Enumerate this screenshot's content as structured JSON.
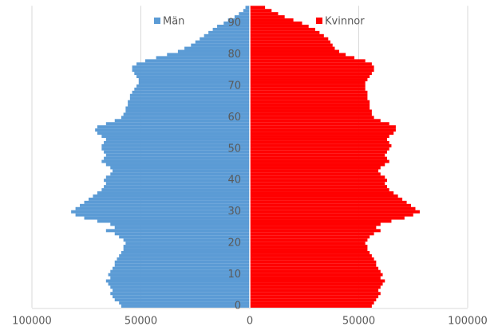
{
  "chart_data": {
    "type": "pyramid",
    "y": [
      0,
      1,
      2,
      3,
      4,
      5,
      6,
      7,
      8,
      9,
      10,
      11,
      12,
      13,
      14,
      15,
      16,
      17,
      18,
      19,
      20,
      21,
      22,
      23,
      24,
      25,
      26,
      27,
      28,
      29,
      30,
      31,
      32,
      33,
      34,
      35,
      36,
      37,
      38,
      39,
      40,
      41,
      42,
      43,
      44,
      45,
      46,
      47,
      48,
      49,
      50,
      51,
      52,
      53,
      54,
      55,
      56,
      57,
      58,
      59,
      60,
      61,
      62,
      63,
      64,
      65,
      66,
      67,
      68,
      69,
      70,
      71,
      72,
      73,
      74,
      75,
      76,
      77,
      78,
      79,
      80,
      81,
      82,
      83,
      84,
      85,
      86,
      87,
      88,
      89,
      90,
      91,
      92,
      93,
      94,
      95
    ],
    "series": [
      {
        "name": "Män",
        "color": "#5b9bd5",
        "values": [
          -59000,
          -60000,
          -62000,
          -63000,
          -64000,
          -63000,
          -64000,
          -65000,
          -66000,
          -64000,
          -65000,
          -64000,
          -63000,
          -62000,
          -62000,
          -61000,
          -60000,
          -59000,
          -58000,
          -58000,
          -57000,
          -58000,
          -60000,
          -62000,
          -66000,
          -62000,
          -64000,
          -70000,
          -76000,
          -80000,
          -82000,
          -80000,
          -78000,
          -76000,
          -74000,
          -72000,
          -70000,
          -68000,
          -67000,
          -66000,
          -67000,
          -66000,
          -64000,
          -63000,
          -64000,
          -66000,
          -68000,
          -67000,
          -66000,
          -67000,
          -68000,
          -68000,
          -67000,
          -66000,
          -68000,
          -70000,
          -71000,
          -70000,
          -66000,
          -62000,
          -59000,
          -58000,
          -57000,
          -57000,
          -56000,
          -56000,
          -55000,
          -55000,
          -54000,
          -53000,
          -52000,
          -51000,
          -51000,
          -52000,
          -53000,
          -54000,
          -54000,
          -52000,
          -48000,
          -43000,
          -38000,
          -33000,
          -30000,
          -27000,
          -25000,
          -23000,
          -21000,
          -19000,
          -17000,
          -15000,
          -12000,
          -10000,
          -7000,
          -5000,
          -3000,
          -2000
        ]
      },
      {
        "name": "Kvinnor",
        "color": "#ff0000",
        "values": [
          56000,
          57000,
          58000,
          59000,
          60000,
          59000,
          60000,
          61000,
          62000,
          60000,
          61000,
          60000,
          59000,
          58000,
          58000,
          57000,
          56000,
          55000,
          54000,
          54000,
          53000,
          54000,
          55000,
          57000,
          60000,
          58000,
          60000,
          65000,
          71000,
          75000,
          78000,
          76000,
          74000,
          72000,
          70000,
          68000,
          66000,
          64000,
          63000,
          62000,
          63000,
          62000,
          60000,
          59000,
          60000,
          62000,
          64000,
          63000,
          62000,
          63000,
          64000,
          65000,
          64000,
          63000,
          64000,
          66000,
          67000,
          67000,
          64000,
          60000,
          57000,
          56000,
          56000,
          55000,
          55000,
          55000,
          54000,
          54000,
          54000,
          53000,
          53000,
          53000,
          54000,
          55000,
          56000,
          57000,
          57000,
          56000,
          53000,
          48000,
          44000,
          41000,
          39000,
          38000,
          37000,
          36000,
          34000,
          32000,
          30000,
          27000,
          24000,
          20000,
          16000,
          13000,
          10000,
          7000
        ]
      }
    ],
    "xlim": [
      -100000,
      100000
    ],
    "xticks": [
      {
        "value": -100000,
        "label": "100000"
      },
      {
        "value": -50000,
        "label": "50000"
      },
      0,
      50000,
      100000
    ],
    "ylim": [
      -0.5,
      95.5
    ],
    "yticks": [
      0,
      10,
      20,
      30,
      40,
      50,
      60,
      70,
      80,
      90
    ],
    "grid": true
  }
}
